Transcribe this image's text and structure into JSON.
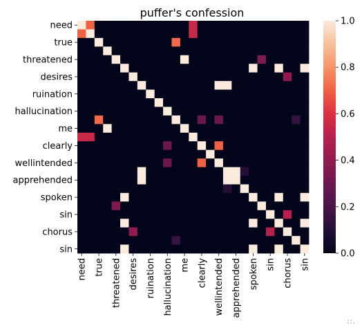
{
  "chart_data": {
    "type": "heatmap",
    "title": "puffer's confession",
    "xlabel": "",
    "ylabel": "",
    "labels": [
      "need",
      "",
      "true",
      "",
      "threatened",
      "",
      "desires",
      "",
      "ruination",
      "",
      "hallucination",
      "",
      "me",
      "",
      "clearly",
      "",
      "wellintended",
      "",
      "apprehended",
      "",
      "spoken",
      "",
      "sin",
      "",
      "chorus",
      "",
      "sin"
    ],
    "x_ticklabels": [
      "need",
      "true",
      "threatened",
      "desires",
      "ruination",
      "hallucination",
      "me",
      "clearly",
      "wellintended",
      "apprehended",
      "spoken",
      "sin",
      "chorus",
      "sin"
    ],
    "y_ticklabels": [
      "need",
      "true",
      "threatened",
      "desires",
      "ruination",
      "hallucination",
      "me",
      "clearly",
      "wellintended",
      "apprehended",
      "spoken",
      "sin",
      "chorus",
      "sin"
    ],
    "size": 27,
    "values": [
      [
        1,
        0.7,
        0,
        0,
        0,
        0,
        0,
        0,
        0,
        0,
        0,
        0,
        0,
        0.55,
        0,
        0,
        0,
        0,
        0,
        0,
        0,
        0,
        0,
        0,
        0,
        0,
        0
      ],
      [
        0.7,
        1,
        0,
        0,
        0,
        0,
        0,
        0,
        0,
        0,
        0,
        0,
        0,
        0.55,
        0,
        0,
        0,
        0,
        0,
        0,
        0,
        0,
        0,
        0,
        0,
        0,
        0
      ],
      [
        0,
        0,
        1,
        0,
        0,
        0,
        0,
        0,
        0,
        0,
        0,
        0.72,
        0,
        0,
        0,
        0,
        0,
        0,
        0,
        0,
        0,
        0,
        0,
        0,
        0,
        0,
        0
      ],
      [
        0,
        0,
        0,
        1,
        0,
        0,
        0,
        0,
        0,
        0,
        0,
        0,
        0,
        0,
        0,
        0,
        0,
        0,
        0,
        0,
        0,
        0,
        0,
        0,
        0,
        0,
        0
      ],
      [
        0,
        0,
        0,
        0,
        1,
        0,
        0,
        0,
        0,
        0,
        0,
        0,
        1,
        0,
        0,
        0,
        0,
        0,
        0,
        0,
        0,
        0.35,
        0,
        0,
        0,
        0,
        0
      ],
      [
        0,
        0,
        0,
        0,
        0,
        1,
        0,
        0,
        0,
        0,
        0,
        0,
        0,
        0,
        0,
        0,
        0,
        0,
        0,
        0,
        1,
        0,
        0,
        1,
        0,
        0,
        1
      ],
      [
        0,
        0,
        0,
        0,
        0,
        0,
        1,
        0,
        0,
        0,
        0,
        0,
        0,
        0,
        0,
        0,
        0,
        0,
        0,
        0,
        0,
        0,
        0,
        0,
        0.4,
        0,
        0
      ],
      [
        0,
        0,
        0,
        0,
        0,
        0,
        0,
        1,
        0,
        0,
        0,
        0,
        0,
        0,
        0,
        0,
        1,
        1,
        0,
        0,
        0,
        0,
        0,
        0,
        0,
        0,
        0
      ],
      [
        0,
        0,
        0,
        0,
        0,
        0,
        0,
        0,
        1,
        0,
        0,
        0,
        0,
        0,
        0,
        0,
        0,
        0,
        0,
        0,
        0,
        0,
        0,
        0,
        0,
        0,
        0
      ],
      [
        0,
        0,
        0,
        0,
        0,
        0,
        0,
        0,
        0,
        1,
        0,
        0,
        0,
        0,
        0,
        0,
        0,
        0,
        0,
        0,
        0,
        0,
        0,
        0,
        0,
        0,
        0
      ],
      [
        0,
        0,
        0,
        0,
        0,
        0,
        0,
        0,
        0,
        0,
        1,
        0,
        0,
        0,
        0,
        0,
        0,
        0,
        0,
        0,
        0,
        0,
        0,
        0,
        0,
        0,
        0
      ],
      [
        0,
        0,
        0.72,
        0,
        0,
        0,
        0,
        0,
        0,
        0,
        0,
        1,
        0,
        0,
        0.3,
        0,
        0.3,
        0,
        0,
        0,
        0,
        0,
        0,
        0,
        0,
        0.15,
        0
      ],
      [
        0,
        0,
        0,
        1,
        0,
        0,
        0,
        0,
        0,
        0,
        0,
        0,
        1,
        0,
        0,
        0,
        0,
        0,
        0,
        0,
        0,
        0,
        0,
        0,
        0,
        0,
        0
      ],
      [
        0.55,
        0.55,
        0,
        0,
        0,
        0,
        0,
        0,
        0,
        0,
        0,
        0,
        0,
        1,
        0,
        0,
        0,
        0,
        0,
        0,
        0,
        0,
        0,
        0,
        0,
        0,
        0
      ],
      [
        0,
        0,
        0,
        0,
        0,
        0,
        0,
        0,
        0,
        0,
        0.3,
        0,
        0,
        0,
        1,
        0,
        0.7,
        0,
        0,
        0,
        0,
        0,
        0,
        0,
        0,
        0,
        0
      ],
      [
        0,
        0,
        0,
        0,
        0,
        0,
        0,
        0,
        0,
        0,
        0,
        0,
        0,
        0,
        0,
        1,
        0,
        0,
        0,
        0,
        0,
        0,
        0,
        0,
        0,
        0,
        0
      ],
      [
        0,
        0,
        0,
        0,
        0,
        0,
        0,
        0,
        0,
        0,
        0.3,
        0,
        0,
        0,
        0.7,
        0,
        1,
        0,
        0,
        0,
        0,
        0,
        0,
        0,
        0,
        0,
        0
      ],
      [
        0,
        0,
        0,
        0,
        0,
        0,
        0,
        1,
        0,
        0,
        0,
        0,
        0,
        0,
        0,
        0,
        0,
        1,
        1,
        0.1,
        0,
        0,
        0,
        0,
        0,
        0,
        0
      ],
      [
        0,
        0,
        0,
        0,
        0,
        0,
        0,
        1,
        0,
        0,
        0,
        0,
        0,
        0,
        0,
        0,
        0,
        1,
        1,
        0,
        0,
        0,
        0,
        0,
        0,
        0,
        0
      ],
      [
        0,
        0,
        0,
        0,
        0,
        0,
        0,
        0,
        0,
        0,
        0,
        0,
        0,
        0,
        0,
        0,
        0,
        0.1,
        0,
        1,
        0,
        0,
        0,
        0,
        0,
        0,
        0
      ],
      [
        0,
        0,
        0,
        0,
        0,
        1,
        0,
        0,
        0,
        0,
        0,
        0,
        0,
        0,
        0,
        0,
        0,
        0,
        0,
        0,
        1,
        0,
        0,
        1,
        0,
        0,
        1
      ],
      [
        0,
        0,
        0,
        0,
        0.35,
        0,
        0,
        0,
        0,
        0,
        0,
        0,
        0,
        0,
        0,
        0,
        0,
        0,
        0,
        0,
        0,
        1,
        0,
        0,
        0,
        0,
        0
      ],
      [
        0,
        0,
        0,
        0,
        0,
        0,
        0,
        0,
        0,
        0,
        0,
        0,
        0,
        0,
        0,
        0,
        0,
        0,
        0,
        0,
        0,
        0,
        1,
        0,
        0.5,
        0,
        0
      ],
      [
        0,
        0,
        0,
        0,
        0,
        1,
        0,
        0,
        0,
        0,
        0,
        0,
        0,
        0,
        0,
        0,
        0,
        0,
        0,
        0,
        1,
        0,
        0,
        1,
        0,
        0,
        1
      ],
      [
        0,
        0,
        0,
        0,
        0,
        0,
        0.4,
        0,
        0,
        0,
        0,
        0,
        0,
        0,
        0,
        0,
        0,
        0,
        0,
        0,
        0,
        0,
        0.5,
        0,
        1,
        0,
        0
      ],
      [
        0,
        0,
        0,
        0,
        0,
        0,
        0,
        0,
        0,
        0,
        0,
        0.15,
        0,
        0,
        0,
        0,
        0,
        0,
        0,
        0,
        0,
        0,
        0,
        0,
        0,
        1,
        0
      ],
      [
        0,
        0,
        0,
        0,
        0,
        1,
        0,
        0,
        0,
        0,
        0,
        0,
        0,
        0,
        0,
        0,
        0,
        0,
        0,
        0,
        1,
        0,
        0,
        1,
        0,
        0,
        1
      ]
    ],
    "vmin": 0,
    "vmax": 1,
    "colorbar_ticks": [
      "0.0",
      "0.2",
      "0.4",
      "0.6",
      "0.8",
      "1.0"
    ],
    "colormap": "rocket",
    "grid": false,
    "legend": "colorbar-right"
  }
}
